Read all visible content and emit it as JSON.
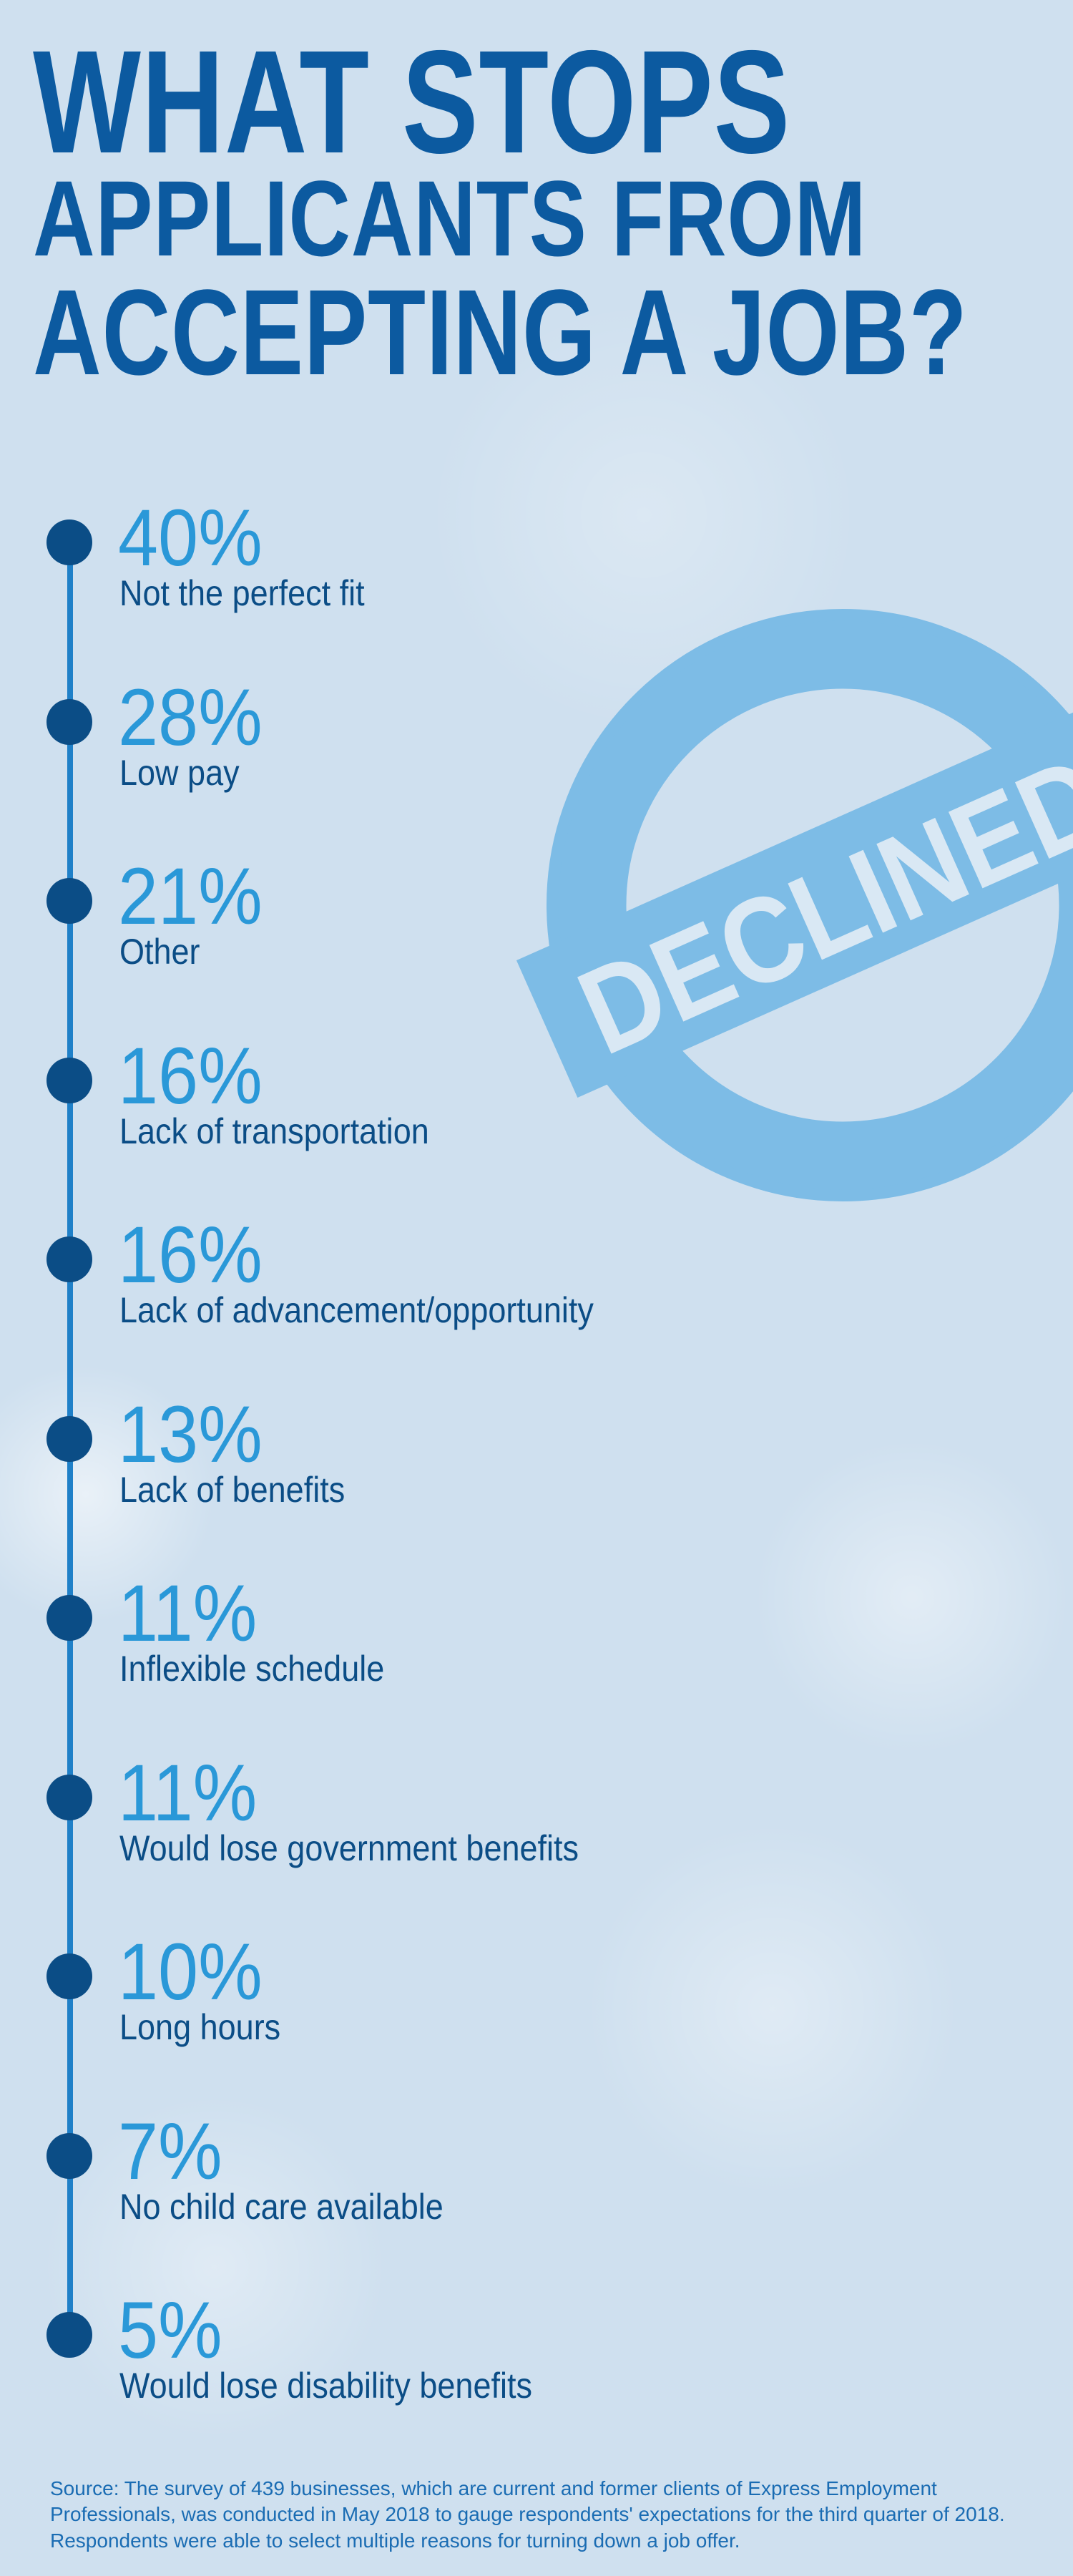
{
  "title": {
    "line1": "WHAT STOPS",
    "line2": "APPLICANTS FROM",
    "line3": "ACCEPTING A JOB?"
  },
  "stamp": {
    "label": "DECLINED",
    "color": "#7dbce6"
  },
  "items": [
    {
      "percent": "40%",
      "reason": "Not the perfect fit"
    },
    {
      "percent": "28%",
      "reason": "Low pay"
    },
    {
      "percent": "21%",
      "reason": "Other"
    },
    {
      "percent": "16%",
      "reason": "Lack of transportation"
    },
    {
      "percent": "16%",
      "reason": "Lack of advancement/opportunity"
    },
    {
      "percent": "13%",
      "reason": "Lack of benefits"
    },
    {
      "percent": "11%",
      "reason": "Inflexible schedule"
    },
    {
      "percent": "11%",
      "reason": "Would lose government benefits"
    },
    {
      "percent": "10%",
      "reason": "Long hours"
    },
    {
      "percent": "7%",
      "reason": "No child care available"
    },
    {
      "percent": "5%",
      "reason": "Would lose disability benefits"
    }
  ],
  "source": "Source: The survey of 439 businesses, which are current and former clients of Express Employment Professionals, was conducted in May 2018 to gauge respondents' expectations for the third quarter of 2018. Respondents were able to select multiple reasons for turning down a job offer.",
  "colors": {
    "background": "#cfe0ef",
    "title": "#0c5aa0",
    "percent": "#2a98d8",
    "reason": "#0b4d86",
    "timeline": "#1f80c8"
  }
}
